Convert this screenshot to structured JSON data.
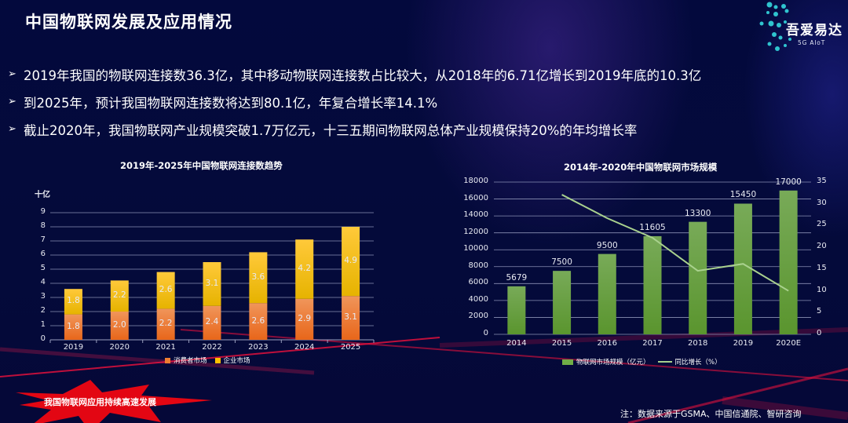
{
  "slide": {
    "title": "中国物联网发展及应用情况",
    "logo": {
      "name": "吾爱易达",
      "tagline": "5G AIoT"
    },
    "bullets": [
      "2019年我国的物联网连接数36.3亿，其中移动物联网连接数占比较大，从2018年的6.71亿增长到2019年底的10.3亿",
      "到2025年，预计我国物联网连接数将达到80.1亿，年复合增长率14.1%",
      "截止2020年，我国物联网产业规模突破1.7万亿元，十三五期间物联网总体产业规模保持20%的年均增长率"
    ],
    "callout": "我国物联网应用持续高速发展",
    "source_note": "注：数据来源于GSMA、中国信通院、智研咨询"
  },
  "chart_data": [
    {
      "type": "bar",
      "stacked": true,
      "title": "2019年-2025年中国物联网连接数趋势",
      "xlabel": "",
      "ylabel": "十亿",
      "ylim": [
        0,
        9
      ],
      "yticks": [
        0,
        1,
        2,
        3,
        4,
        5,
        6,
        7,
        8,
        9
      ],
      "grid": true,
      "legend_position": "bottom",
      "categories": [
        "2019",
        "2020",
        "2021",
        "2022",
        "2023",
        "2024",
        "2025"
      ],
      "series": [
        {
          "name": "消费者市场",
          "color": "#ed7d31",
          "values": [
            1.8,
            2.0,
            2.2,
            2.4,
            2.6,
            2.9,
            3.1
          ],
          "labels": [
            "1.8",
            "2.0",
            "2.2",
            "2.4",
            "2.6",
            "2.9",
            "3.1"
          ]
        },
        {
          "name": "企业市场",
          "color": "#ffc000",
          "values": [
            1.8,
            2.2,
            2.6,
            3.1,
            3.6,
            4.2,
            4.9
          ],
          "labels": [
            "1.8",
            "2.2",
            "2.6",
            "3.1",
            "3.6",
            "4.2",
            "4.9"
          ]
        }
      ]
    },
    {
      "type": "bar",
      "combo": "bar+line",
      "title": "2014年-2020年中国物联网市场规模",
      "xlabel": "",
      "ylabel": "",
      "ylim": [
        0,
        18000
      ],
      "yticks": [
        0,
        2000,
        4000,
        6000,
        8000,
        10000,
        12000,
        14000,
        16000,
        18000
      ],
      "y2lim": [
        0,
        35
      ],
      "y2ticks": [
        0,
        5,
        10,
        15,
        20,
        25,
        30,
        35
      ],
      "grid": true,
      "legend_position": "bottom",
      "categories": [
        "2014",
        "2015",
        "2016",
        "2017",
        "2018",
        "2019",
        "2020E"
      ],
      "series": [
        {
          "name": "物联网市场规模（亿元）",
          "type": "bar",
          "axis": "left",
          "color": "#70ad47",
          "values": [
            5679,
            7500,
            9500,
            11605,
            13300,
            15450,
            17000
          ],
          "labels": [
            "5679",
            "7500",
            "9500",
            "11605",
            "13300",
            "15450",
            "17000"
          ]
        },
        {
          "name": "同比增长（%）",
          "type": "line",
          "axis": "right",
          "color": "#a9d18e",
          "values": [
            null,
            32.1,
            26.7,
            22.2,
            14.6,
            16.2,
            10.0
          ]
        }
      ]
    }
  ]
}
